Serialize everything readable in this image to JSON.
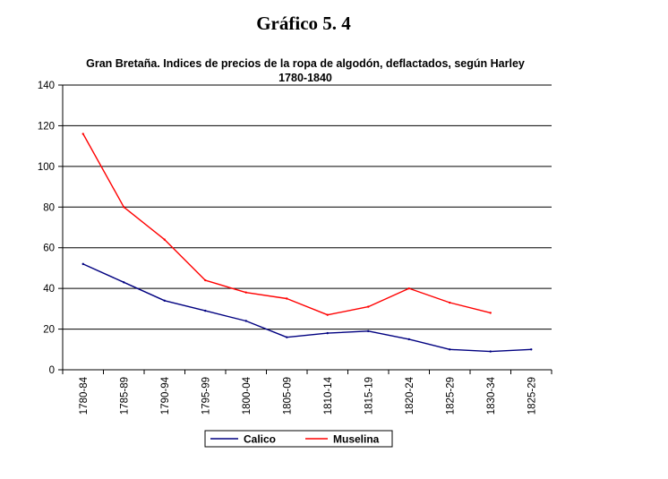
{
  "heading": "Gráfico 5. 4",
  "chart_data": {
    "type": "line",
    "title": "Gran Bretaña. Indices de precios de la ropa de algodón, deflactados,  según Harley",
    "subtitle": "1780-1840",
    "xlabel": "",
    "ylabel": "",
    "ylim": [
      0,
      140
    ],
    "yticks": [
      0,
      20,
      40,
      60,
      80,
      100,
      120,
      140
    ],
    "grid": true,
    "legend_position": "bottom",
    "categories": [
      "1780-84",
      "1785-89",
      "1790-94",
      "1795-99",
      "1800-04",
      "1805-09",
      "1810-14",
      "1815-19",
      "1820-24",
      "1825-29",
      "1830-34",
      "1825-29"
    ],
    "series": [
      {
        "name": "Calico",
        "color": "#000080",
        "values": [
          52,
          43,
          34,
          29,
          24,
          16,
          18,
          19,
          15,
          10,
          9,
          10
        ]
      },
      {
        "name": "Muselina",
        "color": "#ff0000",
        "values": [
          116,
          80,
          64,
          44,
          38,
          35,
          27,
          31,
          40,
          33,
          28,
          null
        ]
      }
    ]
  }
}
